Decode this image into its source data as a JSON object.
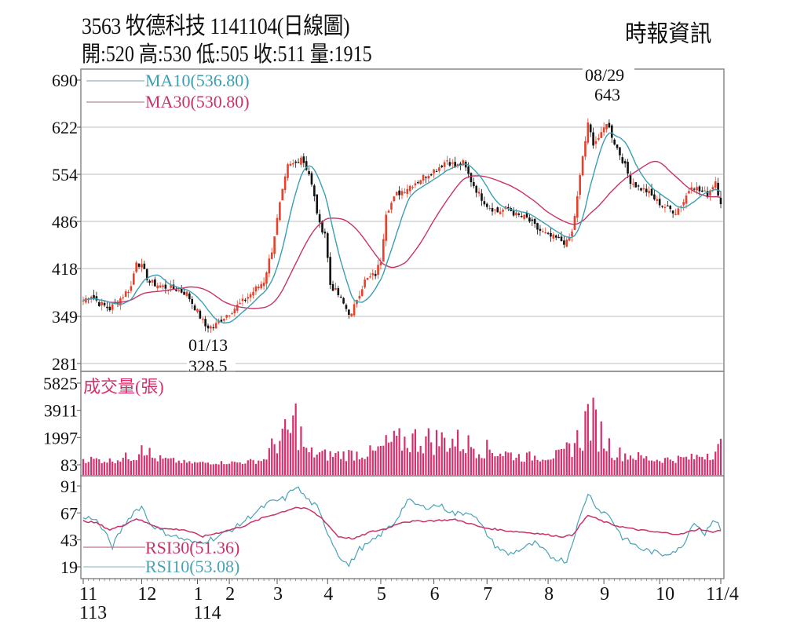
{
  "header": {
    "title": "3563  牧德科技 1141104(日線圖)",
    "ohlc_line": "開:520 高:530 低:505 收:511 量:1915",
    "brand": "時報資訊"
  },
  "colors": {
    "up": "#e8402a",
    "down": "#111111",
    "ma10": "#3a9fb0",
    "ma30": "#c8326a",
    "volume": "#d62f6e",
    "rsi30": "#c8326a",
    "rsi10": "#4aa3b5",
    "grid": "#bdbdbd",
    "axis": "#555555"
  },
  "chart_data": [
    {
      "type": "candlestick",
      "title": "3563 牧德科技 1141104(日線圖)",
      "ylabel": "Price",
      "yticks": [
        690,
        622,
        554,
        486,
        418,
        349,
        281
      ],
      "ylim": [
        281,
        690
      ],
      "grid": true,
      "legend": [
        {
          "name": "MA10",
          "value": "MA10(536.80)"
        },
        {
          "name": "MA30",
          "value": "MA30(530.80)"
        }
      ],
      "annotations": [
        {
          "date": "01/13",
          "value": "328.5",
          "type": "low"
        },
        {
          "date": "08/29",
          "value": "643",
          "type": "high"
        }
      ],
      "last_bar": {
        "open": 520,
        "high": 530,
        "low": 505,
        "close": 511,
        "volume": 1915
      },
      "close_path": [
        {
          "x": 0,
          "v": 372
        },
        {
          "x": 3,
          "v": 380
        },
        {
          "x": 6,
          "v": 368
        },
        {
          "x": 10,
          "v": 360
        },
        {
          "x": 14,
          "v": 375
        },
        {
          "x": 18,
          "v": 392
        },
        {
          "x": 20,
          "v": 430
        },
        {
          "x": 22,
          "v": 420
        },
        {
          "x": 25,
          "v": 398
        },
        {
          "x": 30,
          "v": 392
        },
        {
          "x": 35,
          "v": 388
        },
        {
          "x": 39,
          "v": 382
        },
        {
          "x": 42,
          "v": 362
        },
        {
          "x": 46,
          "v": 335
        },
        {
          "x": 49,
          "v": 333
        },
        {
          "x": 52,
          "v": 345
        },
        {
          "x": 56,
          "v": 358
        },
        {
          "x": 60,
          "v": 370
        },
        {
          "x": 64,
          "v": 385
        },
        {
          "x": 68,
          "v": 400
        },
        {
          "x": 71,
          "v": 445
        },
        {
          "x": 74,
          "v": 510
        },
        {
          "x": 77,
          "v": 565
        },
        {
          "x": 80,
          "v": 570
        },
        {
          "x": 82,
          "v": 580
        },
        {
          "x": 85,
          "v": 555
        },
        {
          "x": 87,
          "v": 520
        },
        {
          "x": 89,
          "v": 480
        },
        {
          "x": 91,
          "v": 470
        },
        {
          "x": 93,
          "v": 395
        },
        {
          "x": 96,
          "v": 380
        },
        {
          "x": 99,
          "v": 360
        },
        {
          "x": 101,
          "v": 350
        },
        {
          "x": 103,
          "v": 375
        },
        {
          "x": 106,
          "v": 400
        },
        {
          "x": 110,
          "v": 410
        },
        {
          "x": 112,
          "v": 430
        },
        {
          "x": 114,
          "v": 500
        },
        {
          "x": 118,
          "v": 525
        },
        {
          "x": 122,
          "v": 535
        },
        {
          "x": 126,
          "v": 545
        },
        {
          "x": 130,
          "v": 555
        },
        {
          "x": 134,
          "v": 565
        },
        {
          "x": 137,
          "v": 575
        },
        {
          "x": 140,
          "v": 565
        },
        {
          "x": 143,
          "v": 570
        },
        {
          "x": 146,
          "v": 545
        },
        {
          "x": 149,
          "v": 525
        },
        {
          "x": 152,
          "v": 510
        },
        {
          "x": 156,
          "v": 500
        },
        {
          "x": 160,
          "v": 505
        },
        {
          "x": 163,
          "v": 495
        },
        {
          "x": 167,
          "v": 490
        },
        {
          "x": 171,
          "v": 475
        },
        {
          "x": 175,
          "v": 465
        },
        {
          "x": 179,
          "v": 460
        },
        {
          "x": 182,
          "v": 455
        },
        {
          "x": 184,
          "v": 470
        },
        {
          "x": 186,
          "v": 520
        },
        {
          "x": 188,
          "v": 580
        },
        {
          "x": 190,
          "v": 625
        },
        {
          "x": 192,
          "v": 600
        },
        {
          "x": 195,
          "v": 610
        },
        {
          "x": 197,
          "v": 630
        },
        {
          "x": 200,
          "v": 600
        },
        {
          "x": 203,
          "v": 575
        },
        {
          "x": 206,
          "v": 545
        },
        {
          "x": 209,
          "v": 535
        },
        {
          "x": 212,
          "v": 530
        },
        {
          "x": 216,
          "v": 515
        },
        {
          "x": 220,
          "v": 505
        },
        {
          "x": 223,
          "v": 500
        },
        {
          "x": 226,
          "v": 515
        },
        {
          "x": 229,
          "v": 540
        },
        {
          "x": 232,
          "v": 530
        },
        {
          "x": 235,
          "v": 525
        },
        {
          "x": 238,
          "v": 545
        },
        {
          "x": 240,
          "v": 511
        }
      ]
    },
    {
      "type": "bar",
      "title": "成交量(張)",
      "ylabel": "成交量(張)",
      "yticks": [
        5825,
        3911,
        1997,
        83
      ],
      "ylim": [
        0,
        5825
      ],
      "peak_path": [
        {
          "x": 0,
          "v": 800
        },
        {
          "x": 10,
          "v": 600
        },
        {
          "x": 20,
          "v": 1200
        },
        {
          "x": 22,
          "v": 3000
        },
        {
          "x": 26,
          "v": 900
        },
        {
          "x": 40,
          "v": 350
        },
        {
          "x": 60,
          "v": 400
        },
        {
          "x": 68,
          "v": 700
        },
        {
          "x": 72,
          "v": 2500
        },
        {
          "x": 78,
          "v": 3800
        },
        {
          "x": 80,
          "v": 5200
        },
        {
          "x": 84,
          "v": 1500
        },
        {
          "x": 92,
          "v": 1200
        },
        {
          "x": 110,
          "v": 1500
        },
        {
          "x": 115,
          "v": 2500
        },
        {
          "x": 125,
          "v": 3000
        },
        {
          "x": 140,
          "v": 2800
        },
        {
          "x": 150,
          "v": 2000
        },
        {
          "x": 165,
          "v": 1000
        },
        {
          "x": 180,
          "v": 1200
        },
        {
          "x": 188,
          "v": 3500
        },
        {
          "x": 190,
          "v": 5825
        },
        {
          "x": 194,
          "v": 4000
        },
        {
          "x": 200,
          "v": 1500
        },
        {
          "x": 215,
          "v": 700
        },
        {
          "x": 230,
          "v": 900
        },
        {
          "x": 236,
          "v": 1600
        },
        {
          "x": 240,
          "v": 1915
        }
      ]
    },
    {
      "type": "line",
      "title": "RSI",
      "yticks": [
        91,
        67,
        43,
        19
      ],
      "ylim": [
        19,
        91
      ],
      "legend": [
        {
          "name": "RSI30",
          "value": "RSI30(51.36)"
        },
        {
          "name": "RSI10",
          "value": "RSI10(53.08)"
        }
      ],
      "series": [
        {
          "name": "RSI30",
          "last": 51.36,
          "path": [
            {
              "x": 0,
              "v": 60
            },
            {
              "x": 5,
              "v": 58
            },
            {
              "x": 10,
              "v": 52
            },
            {
              "x": 15,
              "v": 56
            },
            {
              "x": 20,
              "v": 62
            },
            {
              "x": 24,
              "v": 58
            },
            {
              "x": 30,
              "v": 53
            },
            {
              "x": 38,
              "v": 52
            },
            {
              "x": 45,
              "v": 46
            },
            {
              "x": 52,
              "v": 50
            },
            {
              "x": 60,
              "v": 55
            },
            {
              "x": 68,
              "v": 63
            },
            {
              "x": 75,
              "v": 68
            },
            {
              "x": 80,
              "v": 72
            },
            {
              "x": 85,
              "v": 70
            },
            {
              "x": 90,
              "v": 62
            },
            {
              "x": 96,
              "v": 46
            },
            {
              "x": 102,
              "v": 44
            },
            {
              "x": 108,
              "v": 50
            },
            {
              "x": 114,
              "v": 53
            },
            {
              "x": 120,
              "v": 59
            },
            {
              "x": 130,
              "v": 60
            },
            {
              "x": 140,
              "v": 61
            },
            {
              "x": 145,
              "v": 58
            },
            {
              "x": 150,
              "v": 54
            },
            {
              "x": 160,
              "v": 51
            },
            {
              "x": 170,
              "v": 49
            },
            {
              "x": 180,
              "v": 46
            },
            {
              "x": 184,
              "v": 47
            },
            {
              "x": 190,
              "v": 65
            },
            {
              "x": 195,
              "v": 60
            },
            {
              "x": 200,
              "v": 56
            },
            {
              "x": 206,
              "v": 53
            },
            {
              "x": 215,
              "v": 50
            },
            {
              "x": 225,
              "v": 48
            },
            {
              "x": 232,
              "v": 53
            },
            {
              "x": 236,
              "v": 50
            },
            {
              "x": 240,
              "v": 51.36
            }
          ]
        },
        {
          "name": "RSI10",
          "last": 53.08,
          "path": [
            {
              "x": 0,
              "v": 62
            },
            {
              "x": 4,
              "v": 63
            },
            {
              "x": 8,
              "v": 50
            },
            {
              "x": 11,
              "v": 37
            },
            {
              "x": 15,
              "v": 55
            },
            {
              "x": 19,
              "v": 68
            },
            {
              "x": 22,
              "v": 73
            },
            {
              "x": 25,
              "v": 58
            },
            {
              "x": 30,
              "v": 50
            },
            {
              "x": 36,
              "v": 45
            },
            {
              "x": 42,
              "v": 40
            },
            {
              "x": 50,
              "v": 45
            },
            {
              "x": 58,
              "v": 55
            },
            {
              "x": 64,
              "v": 66
            },
            {
              "x": 70,
              "v": 76
            },
            {
              "x": 76,
              "v": 80
            },
            {
              "x": 80,
              "v": 91
            },
            {
              "x": 84,
              "v": 80
            },
            {
              "x": 88,
              "v": 72
            },
            {
              "x": 92,
              "v": 50
            },
            {
              "x": 96,
              "v": 30
            },
            {
              "x": 100,
              "v": 20
            },
            {
              "x": 104,
              "v": 35
            },
            {
              "x": 108,
              "v": 40
            },
            {
              "x": 112,
              "v": 48
            },
            {
              "x": 117,
              "v": 58
            },
            {
              "x": 122,
              "v": 78
            },
            {
              "x": 128,
              "v": 72
            },
            {
              "x": 134,
              "v": 74
            },
            {
              "x": 140,
              "v": 66
            },
            {
              "x": 146,
              "v": 68
            },
            {
              "x": 150,
              "v": 55
            },
            {
              "x": 155,
              "v": 38
            },
            {
              "x": 160,
              "v": 30
            },
            {
              "x": 165,
              "v": 35
            },
            {
              "x": 170,
              "v": 40
            },
            {
              "x": 176,
              "v": 28
            },
            {
              "x": 182,
              "v": 24
            },
            {
              "x": 185,
              "v": 48
            },
            {
              "x": 190,
              "v": 85
            },
            {
              "x": 194,
              "v": 70
            },
            {
              "x": 198,
              "v": 65
            },
            {
              "x": 203,
              "v": 45
            },
            {
              "x": 210,
              "v": 35
            },
            {
              "x": 218,
              "v": 30
            },
            {
              "x": 225,
              "v": 35
            },
            {
              "x": 230,
              "v": 60
            },
            {
              "x": 234,
              "v": 48
            },
            {
              "x": 237,
              "v": 62
            },
            {
              "x": 240,
              "v": 53.08
            }
          ]
        }
      ]
    }
  ],
  "axes": {
    "price_ticks": [
      "690",
      "622",
      "554",
      "486",
      "418",
      "349",
      "281"
    ],
    "volume_ticks": [
      "5825",
      "3911",
      "1997",
      "83"
    ],
    "rsi_ticks": [
      "91",
      "67",
      "43",
      "19"
    ],
    "x_months": [
      {
        "label": "11",
        "sub": "113",
        "x": 0
      },
      {
        "label": "12",
        "sub": "",
        "x": 22
      },
      {
        "label": "1",
        "sub": "114",
        "x": 43
      },
      {
        "label": "2",
        "sub": "",
        "x": 55
      },
      {
        "label": "3",
        "sub": "",
        "x": 73
      },
      {
        "label": "4",
        "sub": "",
        "x": 92
      },
      {
        "label": "5",
        "sub": "",
        "x": 112
      },
      {
        "label": "6",
        "sub": "",
        "x": 132
      },
      {
        "label": "7",
        "sub": "",
        "x": 152
      },
      {
        "label": "8",
        "sub": "",
        "x": 175
      },
      {
        "label": "9",
        "sub": "",
        "x": 196
      },
      {
        "label": "10",
        "sub": "",
        "x": 217
      },
      {
        "label": "11/4",
        "sub": "",
        "x": 240
      }
    ]
  },
  "legends": {
    "ma10": "MA10(536.80)",
    "ma30": "MA30(530.80)",
    "volume_title": "成交量(張)",
    "rsi30": "RSI30(51.36)",
    "rsi10": "RSI10(53.08)"
  },
  "annotations": {
    "low_date": "01/13",
    "low_value": "328.5",
    "high_date": "08/29",
    "high_value": "643"
  }
}
